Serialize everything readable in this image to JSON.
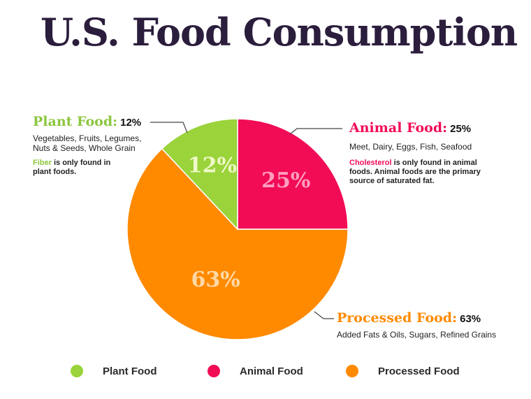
{
  "title": "U.S. Food Consumption",
  "colors": {
    "plant": "#9ad33a",
    "animal": "#f20c56",
    "processed": "#ff8a00",
    "title": "#2b1d3c"
  },
  "callouts": {
    "plant": {
      "name": "Plant Food:",
      "pct": "12%",
      "desc_line1": "Vegetables, Fruits, Legumes,",
      "desc_line2": "Nuts & Seeds, Whole Grain",
      "note_highlight": "Fiber",
      "note_rest_line1": " is only found in",
      "note_line2": "plant foods."
    },
    "animal": {
      "name": "Animal Food:",
      "pct": "25%",
      "desc_line1": "Meet, Dairy, Eggs, Fish, Seafood",
      "note_highlight": "Cholesterol",
      "note_rest_line1": " is only found in animal",
      "note_line2": "foods. Animal foods are the primary",
      "note_line3": "source of saturated fat."
    },
    "processed": {
      "name": "Processed Food:",
      "pct": "63%",
      "desc_line1": "Added Fats & Oils, Sugars, Refined Grains"
    }
  },
  "chart_data": {
    "type": "pie",
    "title": "U.S. Food Consumption",
    "slices": [
      {
        "name": "Animal Food",
        "value": 25,
        "label": "25%",
        "color": "#f20c56",
        "label_color": "#ff9ec0"
      },
      {
        "name": "Processed Food",
        "value": 63,
        "label": "63%",
        "color": "#ff8a00",
        "label_color": "#ffd9a6"
      },
      {
        "name": "Plant Food",
        "value": 12,
        "label": "12%",
        "color": "#9ad33a",
        "label_color": "#eef8c8"
      }
    ],
    "legend": {
      "placement": "bottom",
      "items": [
        {
          "label": "Plant Food",
          "color": "#9ad33a"
        },
        {
          "label": "Animal Food",
          "color": "#f20c56"
        },
        {
          "label": "Processed Food",
          "color": "#ff8a00"
        }
      ]
    }
  }
}
